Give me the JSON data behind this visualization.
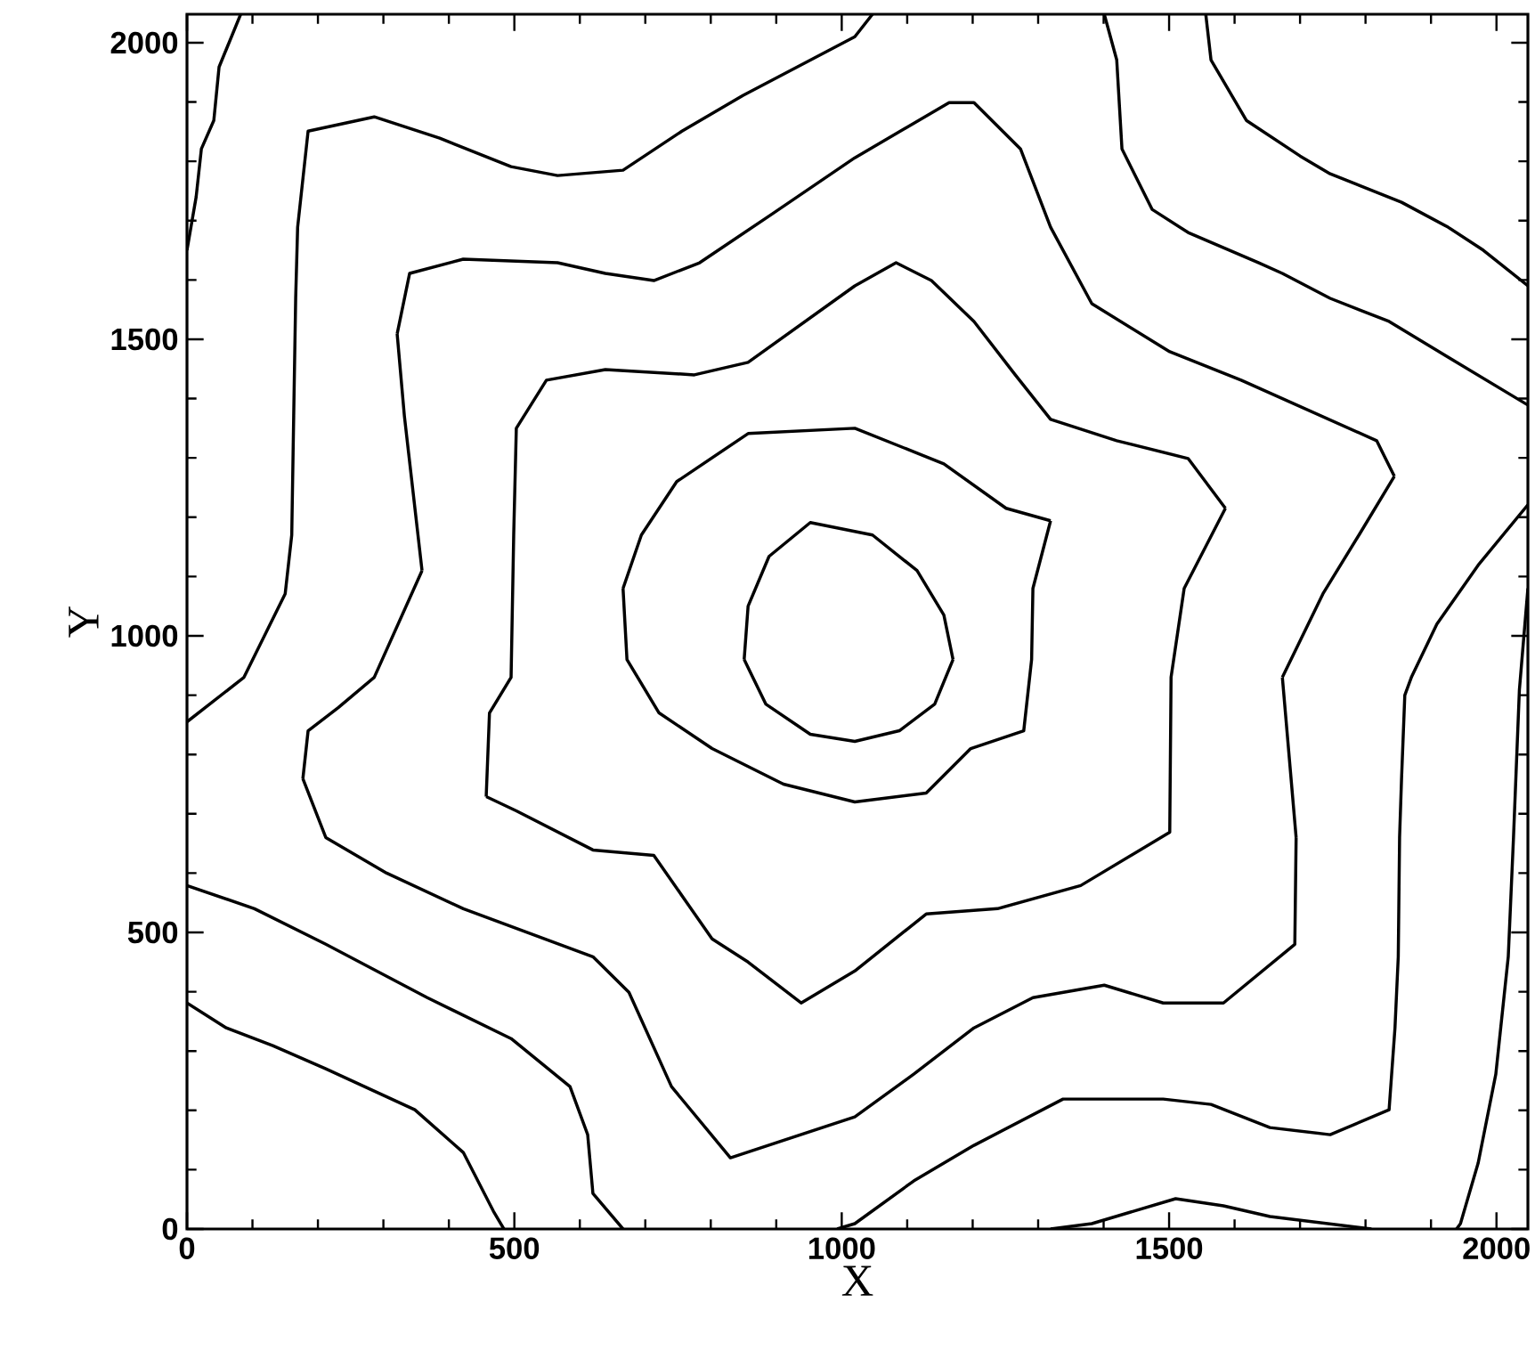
{
  "chart_data": {
    "type": "line",
    "xlabel": "X",
    "ylabel": "Y",
    "xlim": [
      0,
      2048
    ],
    "ylim": [
      0,
      2048
    ],
    "xticks": [
      0,
      500,
      1000,
      1500,
      2000
    ],
    "yticks": [
      0,
      500,
      1000,
      1500,
      2000
    ],
    "marker": "none",
    "line_style": "solid",
    "series": [
      {
        "color": "#000000",
        "x": [
          851,
          857,
          889,
          952,
          1047,
          1115,
          1156,
          1170,
          null,
          851,
          884,
          952,
          1020,
          1088,
          1142,
          1170
        ],
        "values": [
          960,
          1050,
          1134,
          1191,
          1170,
          1110,
          1035,
          960,
          null,
          960,
          885,
          834,
          822,
          840,
          885,
          960
        ]
      },
      {
        "color": "#000000",
        "x": [
          666,
          694,
          748,
          857,
          1020,
          1156,
          1251,
          1319,
          null,
          666,
          672,
          721,
          802,
          911,
          1020,
          1129,
          1197,
          1278,
          1290,
          1292,
          1319
        ],
        "values": [
          1080,
          1170,
          1260,
          1341,
          1350,
          1290,
          1215,
          1194,
          null,
          1080,
          960,
          870,
          810,
          750,
          720,
          735,
          810,
          840,
          960,
          1080,
          1194
        ]
      },
      {
        "color": "#000000",
        "x": [
          457,
          462,
          495,
          499,
          503,
          549,
          639,
          775,
          857,
          1020,
          1083,
          1137,
          1202,
          1265,
          1319,
          1420,
          1529,
          1586,
          null,
          457,
          503,
          620,
          713,
          802,
          857,
          938,
          1020,
          1129,
          1238,
          1365,
          1501,
          1503,
          1523,
          1586
        ],
        "values": [
          729,
          870,
          930,
          1170,
          1350,
          1431,
          1449,
          1440,
          1461,
          1590,
          1629,
          1599,
          1530,
          1440,
          1365,
          1329,
          1299,
          1215,
          null,
          729,
          705,
          639,
          630,
          489,
          450,
          381,
          435,
          531,
          540,
          579,
          669,
          930,
          1080,
          1215
        ]
      },
      {
        "color": "#000000",
        "x": [
          321,
          340,
          422,
          566,
          639,
          713,
          783,
          892,
          1020,
          1164,
          1202,
          1273,
          1319,
          1382,
          1501,
          1610,
          1817,
          1844,
          null,
          177,
          185,
          231,
          286,
          359,
          null,
          321,
          332,
          359,
          null,
          177,
          212,
          305,
          422,
          620,
          675,
          740,
          830,
          1020,
          1110,
          1202,
          1292,
          1401,
          1491,
          1583,
          1692,
          1694,
          null,
          1673,
          1694,
          null,
          1673,
          1735,
          1790,
          1844
        ],
        "values": [
          1509,
          1611,
          1635,
          1629,
          1611,
          1599,
          1629,
          1710,
          1806,
          1899,
          1899,
          1821,
          1689,
          1560,
          1479,
          1431,
          1329,
          1269,
          null,
          759,
          840,
          879,
          930,
          1110,
          null,
          1509,
          1371,
          1110,
          null,
          759,
          660,
          600,
          540,
          459,
          399,
          240,
          120,
          189,
          261,
          339,
          390,
          411,
          381,
          381,
          480,
          660,
          null,
          930,
          660,
          null,
          930,
          1071,
          1170,
          1269
        ]
      },
      {
        "color": "#000000",
        "x": [
          0,
          87,
          150,
          160,
          163,
          166,
          169,
          185,
          286,
          386,
          495,
          566,
          666,
          756,
          849,
          1020,
          1047
        ],
        "values": [
          855,
          930,
          1071,
          1170,
          1371,
          1569,
          1689,
          1851,
          1875,
          1839,
          1791,
          1776,
          1785,
          1851,
          1911,
          2010,
          2048
        ]
      },
      {
        "color": "#000000",
        "x": [
          0,
          14,
          22,
          41,
          49,
          82
        ],
        "values": [
          1650,
          1740,
          1821,
          1869,
          1959,
          2048
        ]
      },
      {
        "color": "#000000",
        "x": [
          1401,
          1420,
          1428,
          1474,
          1529,
          1637,
          1673,
          1746,
          1836,
          1926,
          2048
        ],
        "values": [
          2048,
          1971,
          1821,
          1719,
          1680,
          1629,
          1611,
          1569,
          1530,
          1470,
          1389
        ]
      },
      {
        "color": "#000000",
        "x": [
          1556,
          1564,
          1618,
          1700,
          1746,
          1855,
          1926,
          1980,
          2048
        ],
        "values": [
          2048,
          1971,
          1869,
          1809,
          1779,
          1731,
          1689,
          1650,
          1590
        ]
      },
      {
        "color": "#000000",
        "x": [
          2048,
          1972,
          1909,
          1870,
          1860,
          1855,
          1852,
          1850,
          1845,
          1836,
          1746,
          1654,
          1564,
          1491,
          1338,
          1202,
          1110,
          1020,
          993
        ],
        "values": [
          1221,
          1119,
          1020,
          930,
          900,
          759,
          660,
          459,
          339,
          201,
          159,
          171,
          210,
          219,
          219,
          141,
          81,
          9,
          0
        ]
      },
      {
        "color": "#000000",
        "x": [
          2048,
          2035,
          2026,
          2018,
          1999,
          1972,
          1945,
          1939
        ],
        "values": [
          1080,
          909,
          660,
          459,
          261,
          111,
          9,
          0
        ]
      },
      {
        "color": "#000000",
        "x": [
          1319,
          1382,
          1510,
          1583,
          1654,
          1809
        ],
        "values": [
          0,
          9,
          51,
          39,
          21,
          0
        ]
      },
      {
        "color": "#000000",
        "x": [
          0,
          103,
          212,
          367,
          495,
          585,
          612,
          620,
          666
        ],
        "values": [
          579,
          540,
          480,
          390,
          321,
          240,
          159,
          60,
          0
        ]
      },
      {
        "color": "#000000",
        "x": [
          0,
          60,
          131,
          212,
          348,
          422,
          468,
          484
        ],
        "values": [
          381,
          339,
          309,
          270,
          201,
          129,
          30,
          0
        ]
      }
    ]
  }
}
